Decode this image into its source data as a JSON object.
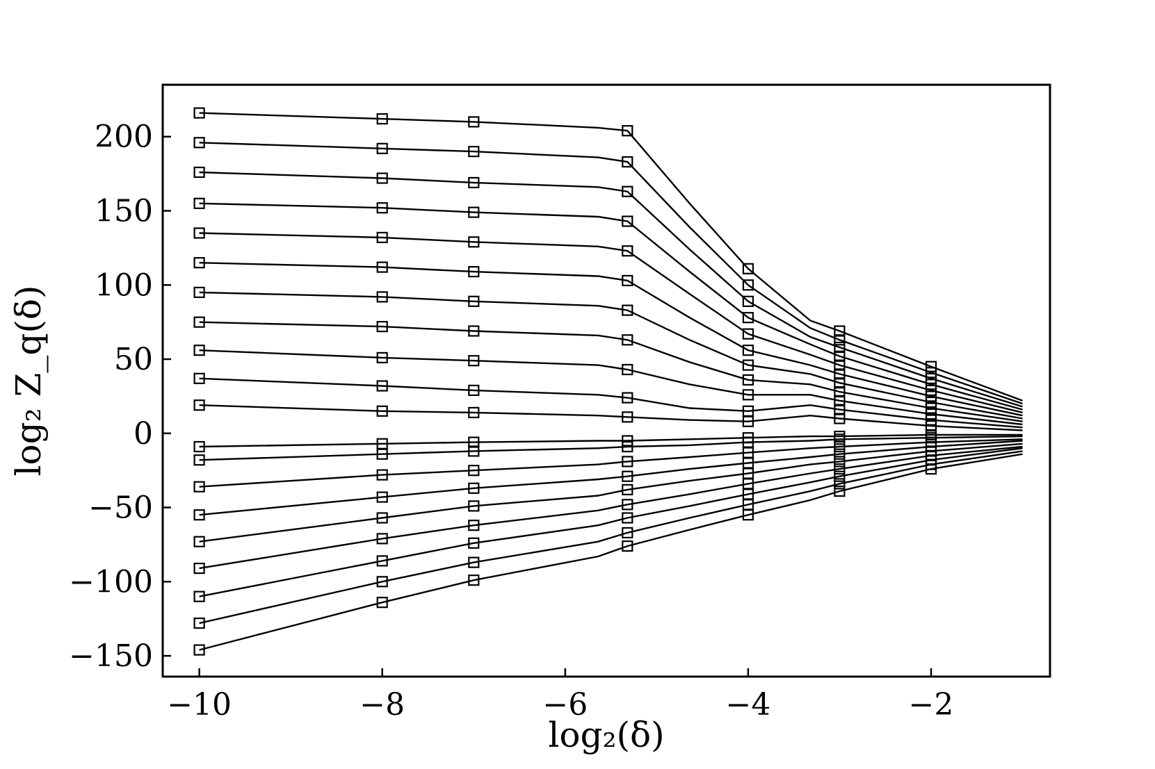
{
  "chart_data": {
    "type": "line",
    "xlabel": "log₂(δ)",
    "ylabel": "log₂ Z_q(δ)",
    "xlim": [
      -10.4,
      -0.7
    ],
    "ylim": [
      -164,
      235
    ],
    "x_ticks": [
      -10,
      -8,
      -6,
      -4,
      -2
    ],
    "y_ticks": [
      -150,
      -100,
      -50,
      0,
      50,
      100,
      150,
      200
    ],
    "x_tick_labels": [
      "−10",
      "−8",
      "−6",
      "−4",
      "−2"
    ],
    "y_tick_labels": [
      "−150",
      "−100",
      "−50",
      "0",
      "50",
      "100",
      "150",
      "200"
    ],
    "grid": false,
    "legend": "none",
    "marker": "open-square",
    "color": "#000000",
    "line_x": [
      -10,
      -8,
      -7,
      -5.64,
      -5.32,
      -4.64,
      -4,
      -3.32,
      -3,
      -2,
      -1
    ],
    "marker_x": [
      -10,
      -8,
      -7,
      -5.32,
      -4,
      -3,
      -2
    ],
    "series": [
      {
        "values": [
          216,
          212,
          210,
          206,
          204,
          155,
          111,
          76,
          69,
          45,
          22
        ]
      },
      {
        "values": [
          196,
          192,
          190,
          186,
          183,
          139,
          100,
          71,
          63,
          41,
          20
        ]
      },
      {
        "values": [
          176,
          172,
          169,
          166,
          163,
          124,
          89,
          65,
          58,
          37,
          18
        ]
      },
      {
        "values": [
          155,
          152,
          149,
          146,
          143,
          109,
          78,
          60,
          52,
          33,
          16
        ]
      },
      {
        "values": [
          135,
          132,
          129,
          126,
          123,
          94,
          67,
          53,
          46,
          29,
          14
        ]
      },
      {
        "values": [
          115,
          112,
          109,
          106,
          103,
          78,
          56,
          46,
          40,
          25,
          12
        ]
      },
      {
        "values": [
          95,
          92,
          89,
          86,
          83,
          63,
          46,
          40,
          34,
          21,
          10
        ]
      },
      {
        "values": [
          75,
          72,
          69,
          66,
          63,
          48,
          36,
          33,
          28,
          17,
          8
        ]
      },
      {
        "values": [
          56,
          51,
          49,
          46,
          43,
          33,
          26,
          26,
          22,
          13,
          6
        ]
      },
      {
        "values": [
          37,
          32,
          29,
          26,
          24,
          17,
          15,
          19,
          16,
          9,
          4
        ]
      },
      {
        "values": [
          19,
          15,
          14,
          12,
          11,
          9,
          8,
          12,
          10,
          5,
          2
        ]
      },
      {
        "values": [
          -9,
          -7,
          -6,
          -5,
          -5,
          -4,
          -3,
          -2,
          -2,
          -1,
          -1
        ]
      },
      {
        "values": [
          -18,
          -14,
          -12,
          -10,
          -9,
          -8,
          -6,
          -5,
          -4,
          -3,
          -2
        ]
      },
      {
        "values": [
          -36,
          -28,
          -25,
          -21,
          -19,
          -16,
          -13,
          -10,
          -9,
          -6,
          -4
        ]
      },
      {
        "values": [
          -55,
          -43,
          -37,
          -31,
          -29,
          -24,
          -20,
          -16,
          -14,
          -9,
          -5
        ]
      },
      {
        "values": [
          -73,
          -57,
          -49,
          -42,
          -38,
          -32,
          -27,
          -21,
          -19,
          -12,
          -7
        ]
      },
      {
        "values": [
          -91,
          -71,
          -62,
          -52,
          -48,
          -41,
          -34,
          -27,
          -24,
          -15,
          -9
        ]
      },
      {
        "values": [
          -110,
          -86,
          -74,
          -62,
          -57,
          -49,
          -41,
          -33,
          -29,
          -18,
          -10
        ]
      },
      {
        "values": [
          -128,
          -100,
          -87,
          -73,
          -67,
          -57,
          -48,
          -39,
          -34,
          -21,
          -12
        ]
      },
      {
        "values": [
          -146,
          -114,
          -99,
          -83,
          -76,
          -65,
          -55,
          -45,
          -39,
          -24,
          -14
        ]
      }
    ],
    "marker_values": [
      [
        216,
        212,
        210,
        204,
        111,
        69,
        45
      ],
      [
        196,
        192,
        190,
        183,
        100,
        63,
        41
      ],
      [
        176,
        172,
        169,
        163,
        89,
        58,
        37
      ],
      [
        155,
        152,
        149,
        143,
        78,
        52,
        33
      ],
      [
        135,
        132,
        129,
        123,
        67,
        46,
        29
      ],
      [
        115,
        112,
        109,
        103,
        56,
        40,
        25
      ],
      [
        95,
        92,
        89,
        83,
        46,
        34,
        21
      ],
      [
        75,
        72,
        69,
        63,
        36,
        28,
        17
      ],
      [
        56,
        51,
        49,
        43,
        26,
        22,
        13
      ],
      [
        37,
        32,
        29,
        24,
        15,
        16,
        9
      ],
      [
        19,
        15,
        14,
        11,
        8,
        10,
        5
      ],
      [
        -9,
        -7,
        -6,
        -5,
        -3,
        -2,
        -1
      ],
      [
        -18,
        -14,
        -12,
        -9,
        -6,
        -4,
        -3
      ],
      [
        -36,
        -28,
        -25,
        -19,
        -13,
        -9,
        -6
      ],
      [
        -55,
        -43,
        -37,
        -29,
        -20,
        -14,
        -9
      ],
      [
        -73,
        -57,
        -49,
        -38,
        -27,
        -19,
        -12
      ],
      [
        -91,
        -71,
        -62,
        -48,
        -34,
        -24,
        -15
      ],
      [
        -110,
        -86,
        -74,
        -57,
        -41,
        -29,
        -18
      ],
      [
        -128,
        -100,
        -87,
        -67,
        -48,
        -34,
        -21
      ],
      [
        -146,
        -114,
        -99,
        -76,
        -55,
        -39,
        -24
      ]
    ]
  }
}
